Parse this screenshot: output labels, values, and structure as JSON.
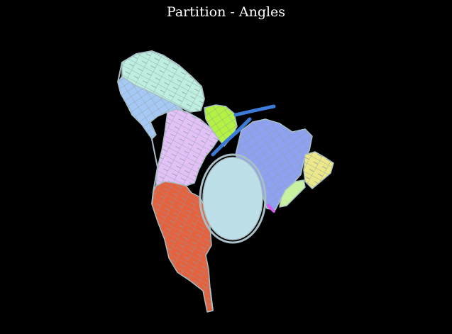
{
  "title": "Partition - Angles",
  "regions": [
    {
      "name": "teal",
      "color": "#bdeedf"
    },
    {
      "name": "light-blue",
      "color": "#a6c8f4"
    },
    {
      "name": "lime",
      "color": "#b3f242"
    },
    {
      "name": "violet",
      "color": "#e3c1f7"
    },
    {
      "name": "periwinkle",
      "color": "#8fa2f2"
    },
    {
      "name": "yellow",
      "color": "#ece88a"
    },
    {
      "name": "mint",
      "color": "#c8f2a0"
    },
    {
      "name": "blue-road",
      "color": "#3d7bd9"
    },
    {
      "name": "red",
      "color": "#e5623f"
    },
    {
      "name": "lake",
      "color": "#bde0e8"
    },
    {
      "name": "magenta",
      "color": "#d55cf0"
    }
  ],
  "colors": {
    "background": "#000000",
    "street": "#9aa8ac",
    "outline": "#a9bfc6"
  }
}
